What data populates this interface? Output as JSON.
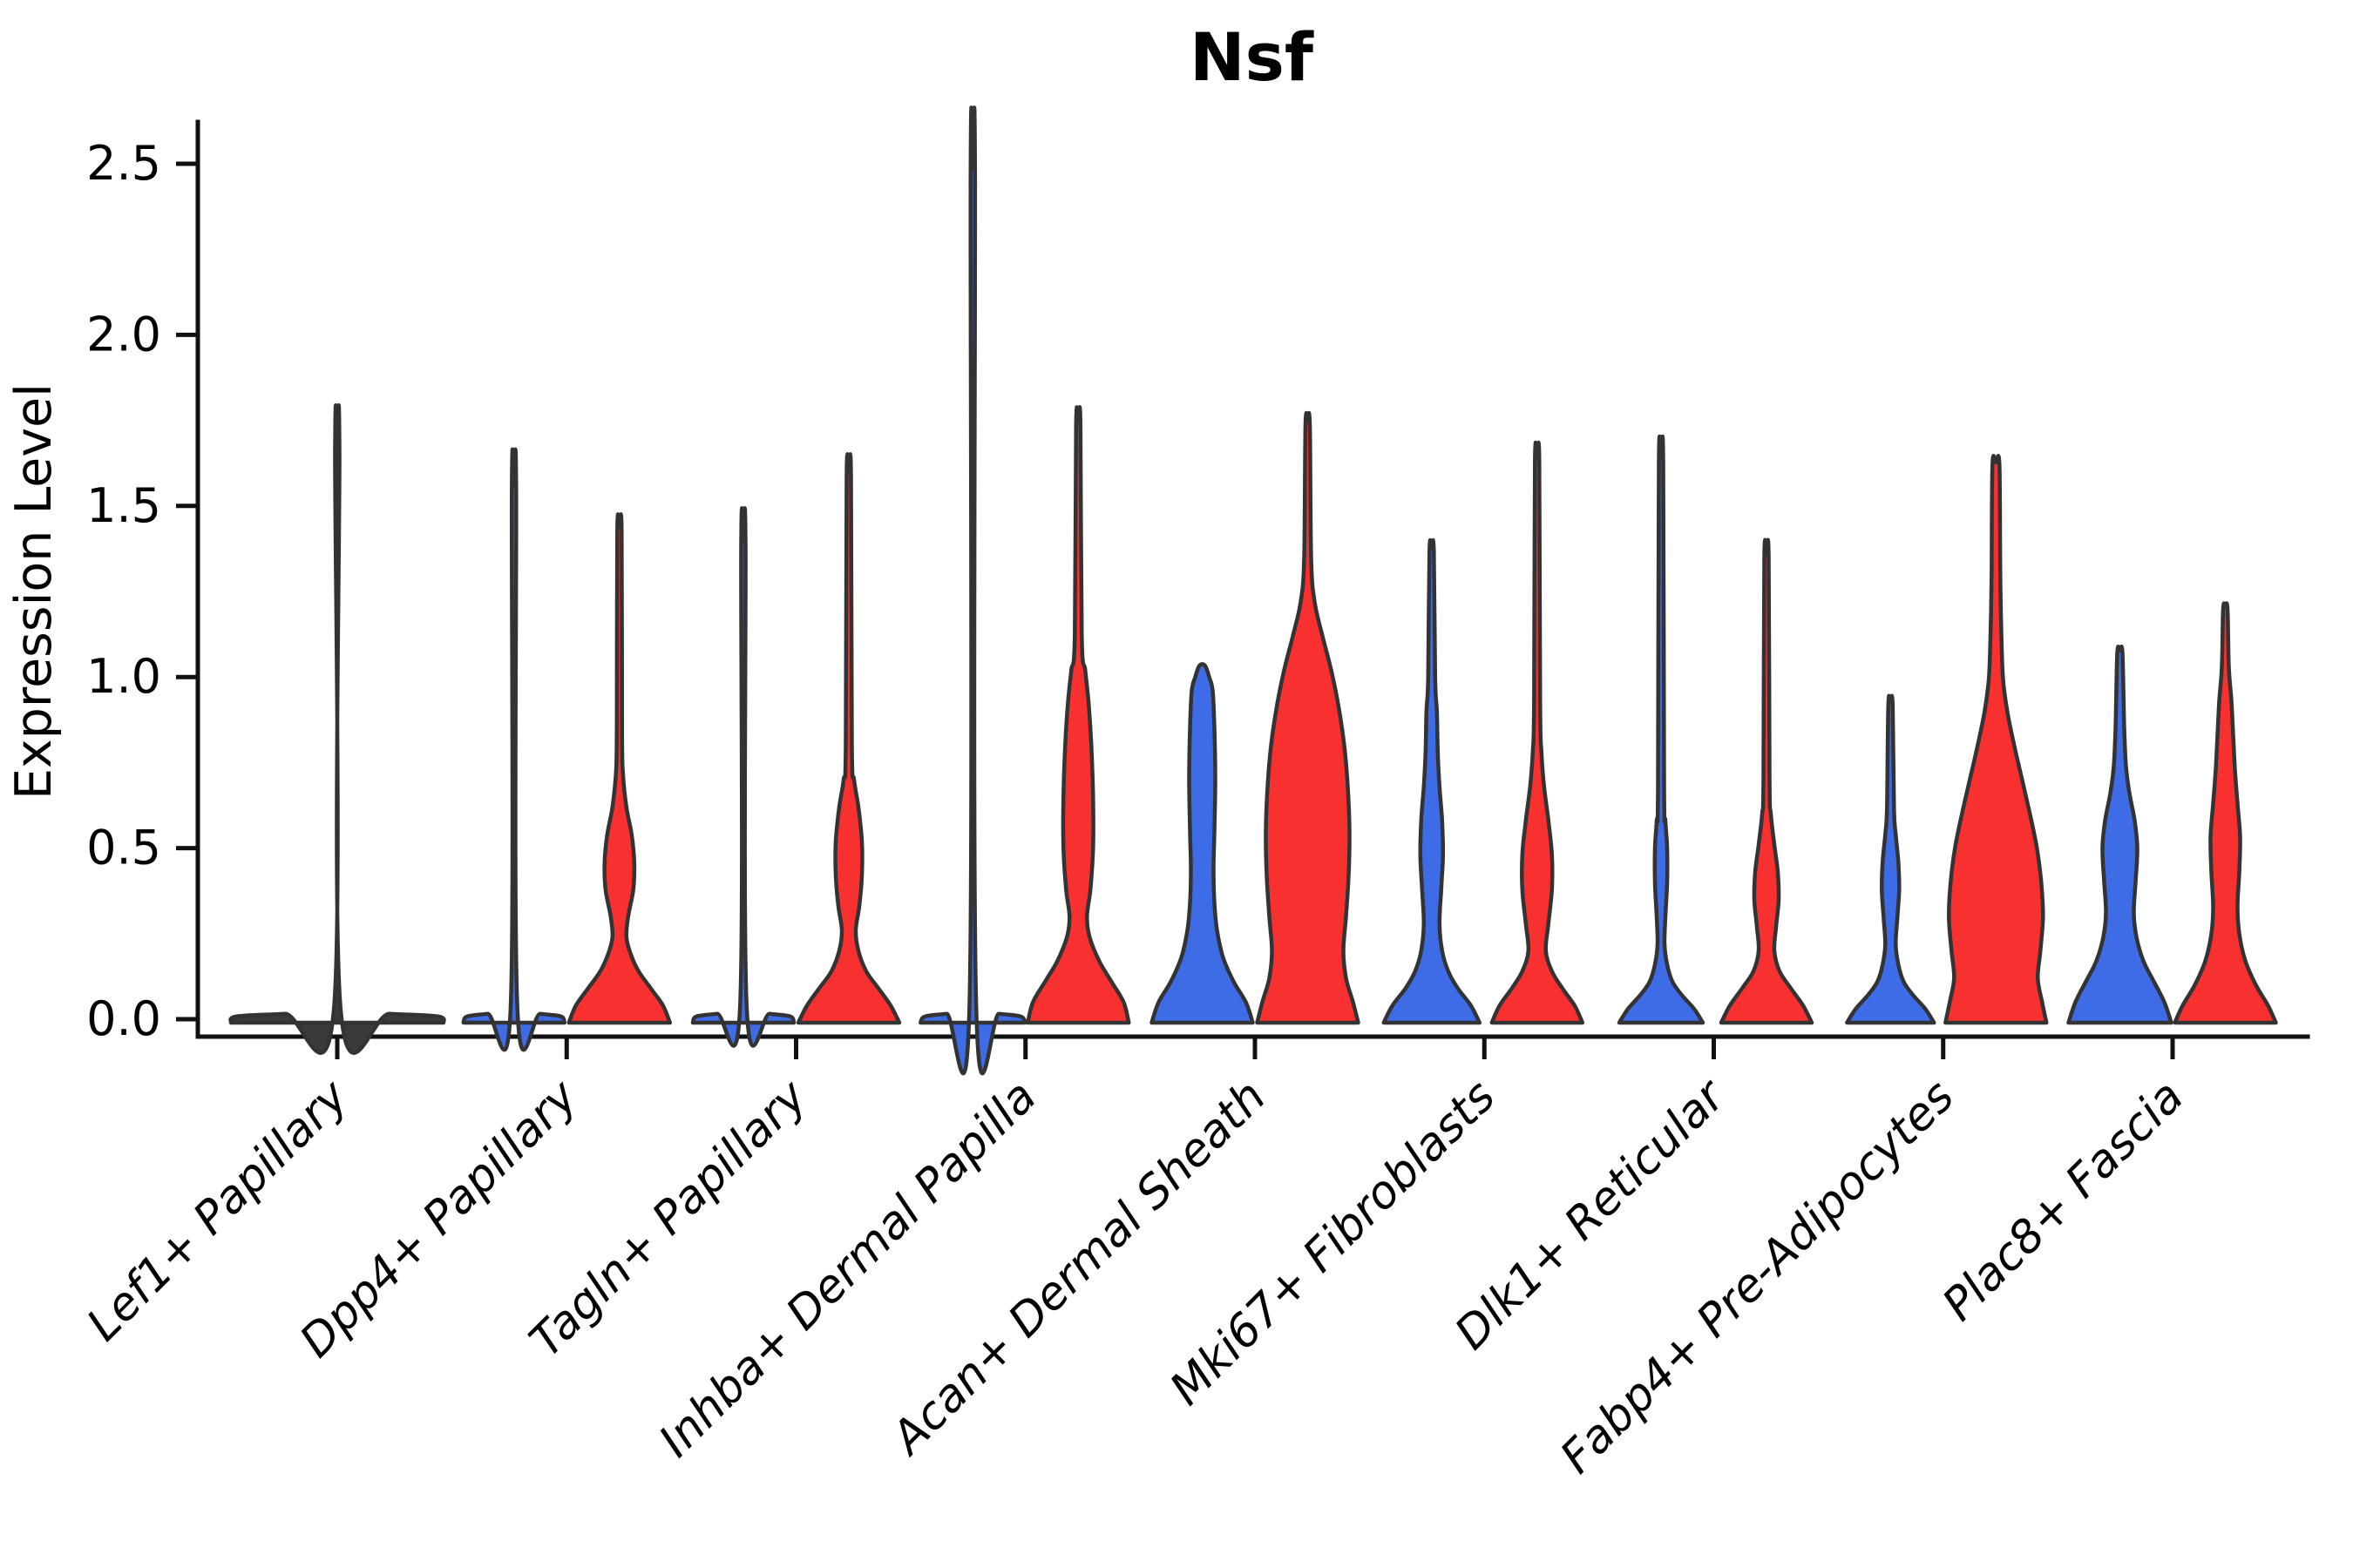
{
  "chart_data": {
    "type": "violin",
    "title": "Nsf",
    "ylabel": "Expression Level",
    "ylim": [
      0,
      2.5
    ],
    "yticks": [
      "0.0",
      "0.5",
      "1.0",
      "1.5",
      "2.0",
      "2.5"
    ],
    "ytick_values": [
      0,
      0.5,
      1.0,
      1.5,
      2.0,
      2.5
    ],
    "grid": "off",
    "legend": "none",
    "colors": {
      "blue": "#3E6BE6",
      "red": "#F93030",
      "dark": "#3a3a3a",
      "outline": "#333333",
      "axis": "#111111"
    },
    "categories": [
      "Lef1+ Papillary",
      "Dpp4+ Papillary",
      "Tagln+ Papillary",
      "Inhba+ Dermal Papilla",
      "Acan+ Dermal Sheath",
      "Mki67+ Fibroblasts",
      "Dlk1+ Reticular",
      "Fabp4+ Pre-Adipocytes",
      "Plac8+ Fascia"
    ],
    "groups": [
      {
        "label": "Lef1+ Papillary",
        "violins": [
          {
            "side": "single",
            "color": "dark",
            "max_expression": 1.67,
            "profile": [
              [
                0,
                122
              ],
              [
                0.008,
                116
              ],
              [
                0.016,
                60
              ],
              [
                0.026,
                4
              ],
              [
                1.67,
                2.5
              ]
            ]
          }
        ]
      },
      {
        "label": "Dpp4+ Papillary",
        "violins": [
          {
            "side": "left",
            "color": "blue",
            "max_expression": 1.55,
            "profile": [
              [
                0,
                58
              ],
              [
                0.008,
                54
              ],
              [
                0.016,
                30
              ],
              [
                0.026,
                4
              ],
              [
                1.55,
                2.5
              ]
            ]
          },
          {
            "side": "right",
            "color": "red",
            "max_expression": 1.43,
            "profile": [
              [
                0,
                58
              ],
              [
                0.04,
                50
              ],
              [
                0.09,
                36
              ],
              [
                0.14,
                22
              ],
              [
                0.19,
                13
              ],
              [
                0.24,
                8
              ],
              [
                0.3,
                10
              ],
              [
                0.38,
                16
              ],
              [
                0.46,
                17
              ],
              [
                0.54,
                14
              ],
              [
                0.62,
                8
              ],
              [
                0.72,
                4
              ],
              [
                0.85,
                3
              ],
              [
                1.43,
                2.5
              ]
            ]
          }
        ]
      },
      {
        "label": "Tagln+ Papillary",
        "violins": [
          {
            "side": "left",
            "color": "blue",
            "max_expression": 1.39,
            "profile": [
              [
                0,
                58
              ],
              [
                0.008,
                54
              ],
              [
                0.016,
                30
              ],
              [
                0.026,
                4
              ],
              [
                1.39,
                2.5
              ]
            ]
          },
          {
            "side": "right",
            "color": "red",
            "max_expression": 1.59,
            "profile": [
              [
                0,
                58
              ],
              [
                0.04,
                48
              ],
              [
                0.09,
                34
              ],
              [
                0.14,
                20
              ],
              [
                0.2,
                11
              ],
              [
                0.26,
                8
              ],
              [
                0.33,
                12
              ],
              [
                0.42,
                15
              ],
              [
                0.52,
                15
              ],
              [
                0.62,
                11
              ],
              [
                0.7,
                6
              ],
              [
                0.8,
                3.5
              ],
              [
                1.59,
                2.5
              ]
            ]
          }
        ]
      },
      {
        "label": "Inhba+ Dermal Papilla",
        "violins": [
          {
            "side": "left",
            "color": "blue",
            "max_expression": 2.48,
            "profile": [
              [
                0,
                60
              ],
              [
                0.008,
                55
              ],
              [
                0.016,
                30
              ],
              [
                0.026,
                4
              ],
              [
                2.48,
                2.5
              ]
            ]
          },
          {
            "side": "right",
            "color": "red",
            "max_expression": 1.74,
            "profile": [
              [
                0,
                58
              ],
              [
                0.05,
                52
              ],
              [
                0.11,
                38
              ],
              [
                0.17,
                24
              ],
              [
                0.24,
                13
              ],
              [
                0.3,
                10
              ],
              [
                0.38,
                14
              ],
              [
                0.5,
                17
              ],
              [
                0.65,
                17
              ],
              [
                0.8,
                15
              ],
              [
                0.92,
                12
              ],
              [
                1.02,
                8
              ],
              [
                1.12,
                4
              ],
              [
                1.74,
                2.5
              ]
            ]
          }
        ]
      },
      {
        "label": "Acan+ Dermal Sheath",
        "violins": [
          {
            "side": "left",
            "color": "blue",
            "max_expression": 1.03,
            "profile": [
              [
                0,
                58
              ],
              [
                0.05,
                50
              ],
              [
                0.11,
                36
              ],
              [
                0.18,
                24
              ],
              [
                0.26,
                17
              ],
              [
                0.34,
                14
              ],
              [
                0.44,
                13
              ],
              [
                0.55,
                14
              ],
              [
                0.7,
                15
              ],
              [
                0.85,
                14
              ],
              [
                0.96,
                12
              ],
              [
                1.0,
                8
              ],
              [
                1.03,
                4
              ]
            ]
          },
          {
            "side": "right",
            "color": "red",
            "max_expression": 1.74,
            "profile": [
              [
                0,
                58
              ],
              [
                0.05,
                52
              ],
              [
                0.12,
                44
              ],
              [
                0.2,
                41
              ],
              [
                0.3,
                44
              ],
              [
                0.42,
                47
              ],
              [
                0.55,
                48
              ],
              [
                0.68,
                46
              ],
              [
                0.8,
                42
              ],
              [
                0.92,
                35
              ],
              [
                1.02,
                27
              ],
              [
                1.12,
                17
              ],
              [
                1.22,
                8
              ],
              [
                1.35,
                4
              ],
              [
                1.74,
                2.5
              ]
            ]
          }
        ]
      },
      {
        "label": "Mki67+ Fibroblasts",
        "violins": [
          {
            "side": "left",
            "color": "blue",
            "max_expression": 1.37,
            "profile": [
              [
                0,
                55
              ],
              [
                0.04,
                45
              ],
              [
                0.09,
                30
              ],
              [
                0.14,
                19
              ],
              [
                0.2,
                12
              ],
              [
                0.28,
                9
              ],
              [
                0.38,
                11
              ],
              [
                0.48,
                13
              ],
              [
                0.58,
                12
              ],
              [
                0.68,
                9
              ],
              [
                0.78,
                7
              ],
              [
                0.9,
                6
              ],
              [
                1.0,
                4
              ],
              [
                1.37,
                2.5
              ]
            ]
          },
          {
            "side": "right",
            "color": "red",
            "max_expression": 1.63,
            "profile": [
              [
                0,
                52
              ],
              [
                0.04,
                43
              ],
              [
                0.09,
                29
              ],
              [
                0.14,
                17
              ],
              [
                0.2,
                10
              ],
              [
                0.28,
                13
              ],
              [
                0.38,
                17
              ],
              [
                0.48,
                17
              ],
              [
                0.58,
                13
              ],
              [
                0.68,
                8
              ],
              [
                0.78,
                5
              ],
              [
                0.92,
                3.5
              ],
              [
                1.63,
                2.5
              ]
            ]
          }
        ]
      },
      {
        "label": "Dlk1+ Reticular",
        "violins": [
          {
            "side": "left",
            "color": "blue",
            "max_expression": 1.63,
            "profile": [
              [
                0,
                48
              ],
              [
                0.03,
                38
              ],
              [
                0.07,
                24
              ],
              [
                0.11,
                13
              ],
              [
                0.16,
                7
              ],
              [
                0.22,
                4
              ],
              [
                0.3,
                5
              ],
              [
                0.4,
                7
              ],
              [
                0.5,
                7
              ],
              [
                0.58,
                5
              ],
              [
                0.68,
                3.5
              ],
              [
                1.63,
                2.5
              ]
            ]
          },
          {
            "side": "right",
            "color": "red",
            "max_expression": 1.35,
            "profile": [
              [
                0,
                52
              ],
              [
                0.04,
                42
              ],
              [
                0.09,
                28
              ],
              [
                0.14,
                15
              ],
              [
                0.2,
                9
              ],
              [
                0.27,
                11
              ],
              [
                0.35,
                14
              ],
              [
                0.43,
                13
              ],
              [
                0.51,
                9
              ],
              [
                0.6,
                5
              ],
              [
                0.7,
                3.5
              ],
              [
                1.35,
                2.5
              ]
            ]
          }
        ]
      },
      {
        "label": "Fabp4+ Pre-Adipocytes",
        "violins": [
          {
            "side": "left",
            "color": "blue",
            "max_expression": 0.92,
            "profile": [
              [
                0,
                50
              ],
              [
                0.03,
                40
              ],
              [
                0.07,
                26
              ],
              [
                0.11,
                15
              ],
              [
                0.16,
                9
              ],
              [
                0.22,
                6
              ],
              [
                0.3,
                8
              ],
              [
                0.38,
                10
              ],
              [
                0.46,
                9
              ],
              [
                0.54,
                6
              ],
              [
                0.62,
                4
              ],
              [
                0.92,
                2.5
              ]
            ]
          },
          {
            "side": "right",
            "color": "red",
            "max_expression": 1.62,
            "profile": [
              [
                0,
                58
              ],
              [
                0.05,
                53
              ],
              [
                0.12,
                48
              ],
              [
                0.2,
                51
              ],
              [
                0.3,
                54
              ],
              [
                0.4,
                52
              ],
              [
                0.5,
                47
              ],
              [
                0.6,
                39
              ],
              [
                0.7,
                30
              ],
              [
                0.8,
                21
              ],
              [
                0.9,
                13
              ],
              [
                1.0,
                8
              ],
              [
                1.15,
                6
              ],
              [
                1.3,
                5
              ],
              [
                1.62,
                4
              ]
            ]
          }
        ]
      },
      {
        "label": "Plac8+ Fascia",
        "violins": [
          {
            "side": "left",
            "color": "blue",
            "max_expression": 1.07,
            "profile": [
              [
                0,
                59
              ],
              [
                0.05,
                51
              ],
              [
                0.11,
                39
              ],
              [
                0.17,
                27
              ],
              [
                0.24,
                19
              ],
              [
                0.31,
                16
              ],
              [
                0.4,
                18
              ],
              [
                0.5,
                20
              ],
              [
                0.58,
                17
              ],
              [
                0.66,
                11
              ],
              [
                0.74,
                7
              ],
              [
                0.85,
                5
              ],
              [
                1.07,
                3
              ]
            ]
          },
          {
            "side": "right",
            "color": "red",
            "max_expression": 1.2,
            "profile": [
              [
                0,
                58
              ],
              [
                0.04,
                49
              ],
              [
                0.1,
                35
              ],
              [
                0.17,
                23
              ],
              [
                0.25,
                16
              ],
              [
                0.33,
                14
              ],
              [
                0.43,
                16
              ],
              [
                0.53,
                17
              ],
              [
                0.63,
                14
              ],
              [
                0.73,
                11
              ],
              [
                0.83,
                9
              ],
              [
                0.93,
                7
              ],
              [
                1.03,
                4
              ],
              [
                1.2,
                2.5
              ]
            ]
          }
        ]
      }
    ]
  }
}
